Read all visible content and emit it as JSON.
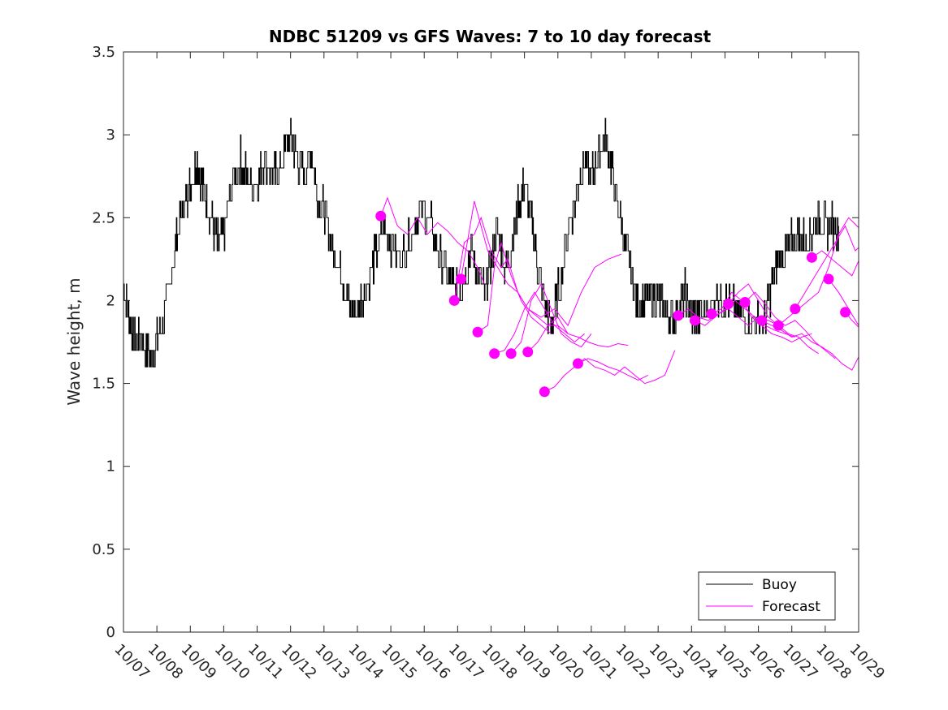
{
  "chart_data": {
    "type": "line",
    "title": "NDBC 51209 vs GFS Waves: 7 to 10 day forecast",
    "xlabel": "",
    "ylabel": "Wave height, m",
    "x_unit": "days since 10/07",
    "xlim": [
      0,
      22
    ],
    "ylim": [
      0,
      3.5
    ],
    "yticks": [
      0,
      0.5,
      1,
      1.5,
      2,
      2.5,
      3,
      3.5
    ],
    "ytick_labels": [
      "0",
      "0.5",
      "1",
      "1.5",
      "2",
      "2.5",
      "3",
      "3.5"
    ],
    "xticks": [
      0,
      1,
      2,
      3,
      4,
      5,
      6,
      7,
      8,
      9,
      10,
      11,
      12,
      13,
      14,
      15,
      16,
      17,
      18,
      19,
      20,
      21,
      22
    ],
    "xtick_labels": [
      "10/07",
      "10/08",
      "10/09",
      "10/10",
      "10/11",
      "10/12",
      "10/13",
      "10/14",
      "10/15",
      "10/16",
      "10/17",
      "10/18",
      "10/19",
      "10/20",
      "10/21",
      "10/22",
      "10/23",
      "10/24",
      "10/25",
      "10/26",
      "10/27",
      "10/28",
      "10/29"
    ],
    "legend": {
      "position": "bottom-right",
      "entries": [
        "Buoy",
        "Forecast"
      ]
    },
    "colors": {
      "buoy": "#000000",
      "forecast": "#ff00ff",
      "axes": "#262626"
    },
    "buoy": {
      "name": "Buoy",
      "x": [
        0,
        0.15,
        0.3,
        0.5,
        0.8,
        1,
        1.2,
        1.5,
        1.7,
        1.85,
        2,
        2.2,
        2.4,
        2.6,
        2.8,
        3,
        3.2,
        3.5,
        3.7,
        4,
        4.2,
        4.5,
        4.7,
        5,
        5.2,
        5.4,
        5.6,
        5.8,
        6,
        6.2,
        6.4,
        6.6,
        6.8,
        7,
        7.2,
        7.5,
        7.8,
        8,
        8.3,
        8.6,
        8.9,
        9.2,
        9.5,
        9.8,
        10,
        10.2,
        10.4,
        10.6,
        10.8,
        11,
        11.2,
        11.4,
        11.6,
        11.8,
        12,
        12.2,
        12.4,
        12.6,
        12.8,
        13,
        13.3,
        13.6,
        13.8,
        14,
        14.2,
        14.4,
        14.6,
        14.8,
        15,
        15.2,
        15.4,
        15.6,
        15.8,
        16,
        16.2,
        16.4,
        16.6,
        16.8,
        17,
        17.2,
        17.5,
        17.8,
        18,
        18.3,
        18.6,
        18.9,
        19.2,
        19.4,
        19.6,
        19.8,
        20,
        20.2,
        20.4,
        20.6,
        20.8,
        21,
        21.2,
        21.4
      ],
      "values": [
        2.1,
        1.95,
        1.75,
        1.8,
        1.65,
        1.75,
        1.9,
        2.25,
        2.5,
        2.6,
        2.7,
        2.85,
        2.65,
        2.5,
        2.35,
        2.4,
        2.65,
        2.85,
        2.75,
        2.7,
        2.85,
        2.75,
        2.8,
        3.0,
        2.85,
        2.75,
        2.9,
        2.65,
        2.55,
        2.35,
        2.25,
        2.1,
        1.95,
        1.95,
        2.05,
        2.25,
        2.45,
        2.35,
        2.25,
        2.4,
        2.55,
        2.45,
        2.25,
        2.1,
        2.05,
        2.15,
        2.3,
        2.15,
        2.05,
        2.25,
        2.45,
        2.2,
        2.3,
        2.55,
        2.7,
        2.5,
        2.2,
        2.0,
        1.85,
        2.05,
        2.4,
        2.7,
        2.85,
        2.75,
        2.85,
        3.0,
        2.8,
        2.55,
        2.35,
        2.15,
        1.95,
        2.0,
        2.05,
        2.0,
        1.95,
        1.9,
        1.95,
        2.05,
        1.9,
        1.9,
        1.95,
        2.05,
        2.0,
        1.95,
        1.9,
        1.85,
        1.9,
        2.1,
        2.25,
        2.3,
        2.35,
        2.4,
        2.35,
        2.4,
        2.5,
        2.45,
        2.45,
        2.45
      ]
    },
    "forecast": {
      "name": "Forecast",
      "series": [
        {
          "x": [
            7.7,
            7.9,
            8.2,
            8.5,
            8.8,
            9.1,
            9.4,
            9.7,
            10.0,
            10.3,
            10.6,
            10.8
          ],
          "values": [
            2.51,
            2.62,
            2.45,
            2.4,
            2.5,
            2.4,
            2.47,
            2.42,
            2.35,
            2.3,
            2.2,
            2.1
          ]
        },
        {
          "x": [
            9.9,
            10.2,
            10.5,
            10.7,
            11.0,
            11.3,
            11.5,
            11.8,
            12.1,
            12.5,
            12.9,
            13.3,
            13.7,
            14.1,
            14.5,
            14.9
          ],
          "values": [
            2.0,
            2.35,
            2.4,
            2.5,
            2.3,
            2.2,
            2.25,
            2.05,
            1.95,
            1.9,
            1.95,
            1.85,
            2.05,
            2.2,
            2.25,
            2.28
          ]
        },
        {
          "x": [
            10.1,
            10.5,
            10.9,
            11.2,
            11.5,
            11.8,
            12.1,
            12.4,
            12.7,
            13.0,
            13.3
          ],
          "values": [
            2.13,
            2.6,
            2.3,
            2.2,
            2.1,
            2.05,
            1.95,
            1.9,
            1.85,
            1.85,
            1.8
          ]
        },
        {
          "x": [
            10.6,
            10.9,
            11.1,
            11.3,
            11.6,
            11.9,
            12.2,
            12.5,
            12.8
          ],
          "values": [
            1.81,
            1.85,
            2.2,
            2.35,
            2.15,
            2.0,
            1.9,
            1.85,
            1.8
          ]
        },
        {
          "x": [
            11.1,
            11.4,
            11.7,
            12.0,
            12.3,
            12.6,
            12.9,
            13.2,
            13.5,
            13.8
          ],
          "values": [
            1.68,
            1.7,
            1.8,
            1.95,
            2.05,
            1.95,
            1.85,
            1.8,
            1.75,
            1.8
          ]
        },
        {
          "x": [
            11.6,
            11.9,
            12.2,
            12.5,
            12.8,
            13.1,
            13.4,
            13.7,
            14.0
          ],
          "values": [
            1.68,
            1.75,
            2.0,
            2.1,
            1.95,
            1.8,
            1.75,
            1.72,
            1.8
          ]
        },
        {
          "x": [
            12.1,
            12.4,
            12.7,
            13.0,
            13.3,
            13.6,
            13.9,
            14.2,
            14.5,
            14.8,
            15.1
          ],
          "values": [
            1.69,
            1.75,
            1.85,
            1.9,
            1.8,
            1.78,
            1.75,
            1.73,
            1.72,
            1.74,
            1.73
          ]
        },
        {
          "x": [
            12.6,
            12.9,
            13.2,
            13.5,
            13.8,
            14.1,
            14.4,
            14.7,
            15.0,
            15.3,
            15.6,
            15.9,
            16.2,
            16.5
          ],
          "values": [
            1.45,
            1.48,
            1.55,
            1.6,
            1.65,
            1.6,
            1.58,
            1.55,
            1.6,
            1.55,
            1.5,
            1.52,
            1.55,
            1.7
          ]
        },
        {
          "x": [
            13.6,
            13.9,
            14.2,
            14.5,
            14.8,
            15.1,
            15.4,
            15.7
          ],
          "values": [
            1.62,
            1.65,
            1.63,
            1.6,
            1.58,
            1.55,
            1.52,
            1.55
          ]
        },
        {
          "x": [
            16.6,
            16.9,
            17.2,
            17.5,
            17.8,
            18.1,
            18.4,
            18.7,
            19.0,
            19.3,
            19.6
          ],
          "values": [
            1.91,
            1.95,
            1.9,
            1.88,
            1.92,
            1.95,
            1.9,
            1.85,
            1.9,
            1.88,
            1.85
          ]
        },
        {
          "x": [
            17.1,
            17.4,
            17.7,
            18.0,
            18.3,
            18.6,
            18.9,
            19.2,
            19.5,
            19.8,
            20.1
          ],
          "values": [
            1.88,
            1.85,
            1.9,
            1.95,
            2.0,
            1.95,
            1.9,
            1.85,
            1.82,
            1.8,
            1.78
          ]
        },
        {
          "x": [
            17.6,
            17.9,
            18.2,
            18.5,
            18.8,
            19.1,
            19.4,
            19.7,
            20.0,
            20.3,
            20.6
          ],
          "values": [
            1.92,
            1.95,
            2.05,
            2.0,
            1.9,
            1.85,
            1.8,
            1.78,
            1.75,
            1.78,
            1.8
          ]
        },
        {
          "x": [
            18.1,
            18.4,
            18.7,
            19.0,
            19.3,
            19.6,
            19.9,
            20.2,
            20.5,
            20.8
          ],
          "values": [
            1.98,
            2.05,
            2.1,
            2.0,
            1.9,
            1.85,
            1.8,
            1.78,
            1.72,
            1.68
          ]
        },
        {
          "x": [
            18.6,
            18.9,
            19.2,
            19.5,
            19.8,
            20.1,
            20.4,
            20.7,
            21.0,
            21.3
          ],
          "values": [
            1.99,
            2.05,
            1.98,
            1.9,
            1.85,
            1.88,
            1.82,
            1.75,
            1.7,
            1.65
          ]
        },
        {
          "x": [
            19.1,
            19.4,
            19.7,
            20.0,
            20.3,
            20.6,
            20.9,
            21.2,
            21.5,
            21.8,
            22.0
          ],
          "values": [
            1.88,
            1.85,
            1.82,
            1.78,
            1.8,
            1.75,
            1.72,
            1.68,
            1.62,
            1.58,
            1.66
          ]
        },
        {
          "x": [
            19.6,
            19.9,
            20.2,
            20.5,
            20.8,
            21.1,
            21.4,
            21.7,
            22.0
          ],
          "values": [
            1.85,
            1.9,
            1.95,
            2.0,
            2.05,
            2.2,
            2.4,
            2.5,
            2.44
          ]
        },
        {
          "x": [
            20.1,
            20.4,
            20.7,
            21.0,
            21.3,
            21.6,
            21.9,
            22.0
          ],
          "values": [
            1.95,
            2.05,
            2.15,
            2.25,
            2.35,
            2.45,
            2.3,
            2.32
          ]
        },
        {
          "x": [
            20.6,
            20.9,
            21.2,
            21.5,
            21.8,
            22.0
          ],
          "values": [
            2.26,
            2.3,
            2.25,
            2.2,
            2.15,
            2.24
          ]
        },
        {
          "x": [
            21.1,
            21.4,
            21.7,
            22.0
          ],
          "values": [
            2.13,
            2.05,
            1.95,
            1.85
          ]
        },
        {
          "x": [
            21.6,
            21.8,
            22.0
          ],
          "values": [
            1.93,
            1.88,
            1.84
          ]
        }
      ],
      "start_points": {
        "x": [
          7.7,
          9.9,
          10.1,
          10.6,
          11.1,
          11.6,
          12.1,
          12.6,
          13.6,
          16.6,
          17.1,
          17.6,
          18.1,
          18.6,
          19.1,
          19.6,
          20.1,
          20.6,
          21.1,
          21.6
        ],
        "values": [
          2.51,
          2.0,
          2.13,
          1.81,
          1.68,
          1.68,
          1.69,
          1.45,
          1.62,
          1.91,
          1.88,
          1.92,
          1.98,
          1.99,
          1.88,
          1.85,
          1.95,
          2.26,
          2.13,
          1.93
        ]
      }
    }
  }
}
